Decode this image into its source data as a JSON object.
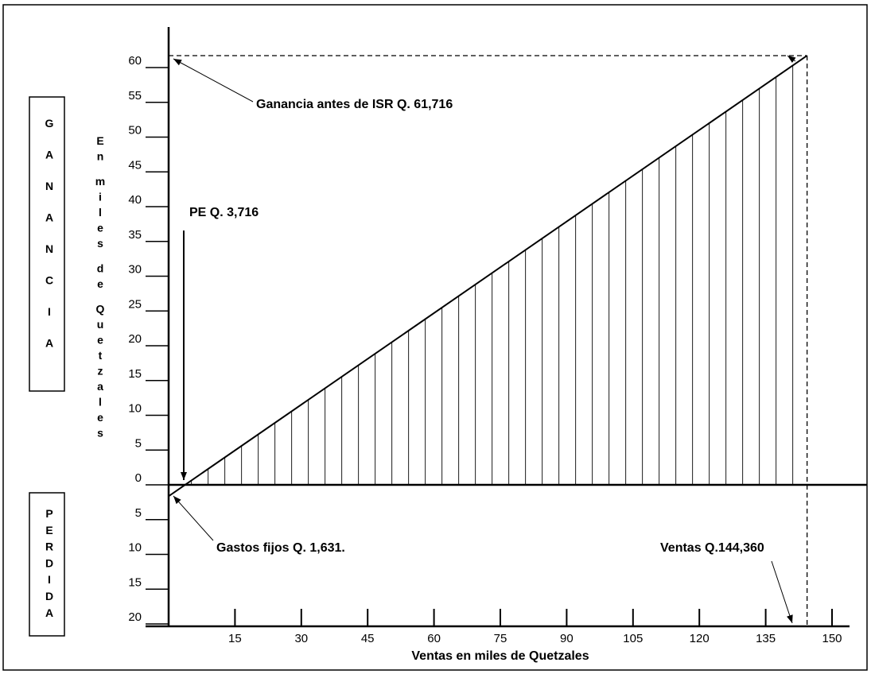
{
  "chart_data": {
    "type": "line",
    "xlabel": "Ventas en miles de Quetzales",
    "ylabel": "En miles de Quetzales",
    "x_ticks": [
      15,
      30,
      45,
      60,
      75,
      90,
      105,
      120,
      135,
      150
    ],
    "y_ticks_up": [
      0,
      5,
      10,
      15,
      20,
      25,
      30,
      35,
      40,
      45,
      50,
      55,
      60
    ],
    "y_ticks_down": [
      5,
      10,
      15,
      20
    ],
    "xlim": [
      0,
      150
    ],
    "ylim": [
      -20,
      60
    ],
    "series": [
      {
        "x": [
          0,
          144.36
        ],
        "y": [
          -1.631,
          61.716
        ]
      }
    ],
    "annotations": {
      "profit": "Ganancia antes de ISR Q. 61,716",
      "breakeven": "PE Q. 3,716",
      "fixed_costs": "Gastos fijos Q. 1,631.",
      "sales": "Ventas Q.144,360"
    },
    "side_labels": {
      "gain": "GANANCIA",
      "loss": "PERDIDA"
    },
    "grid": false,
    "hatched_profit_area": true
  }
}
